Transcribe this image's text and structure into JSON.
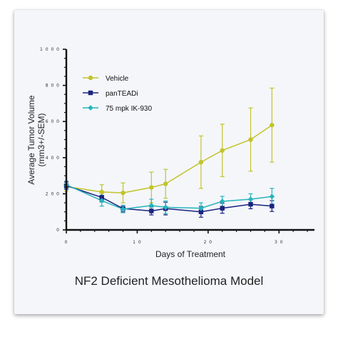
{
  "chart_data": {
    "type": "line",
    "caption": "NF2 Deficient Mesothelioma Model",
    "title": "",
    "xlabel": "Days of Treatment",
    "ylabel_lines": [
      "Average  Tumor Volume",
      "(mm3+/-SEM)"
    ],
    "xlim": [
      0,
      35
    ],
    "ylim": [
      0,
      1000
    ],
    "xticks": [
      0,
      10,
      20,
      30
    ],
    "xtick_labels": [
      "0",
      "1 0",
      "2 0",
      "3 0"
    ],
    "yticks": [
      0,
      200,
      400,
      600,
      800,
      1000
    ],
    "ytick_labels": [
      "0",
      "2 0 0",
      "4 0 0",
      "6 0 0",
      "8 0 0",
      "1 0 0 0"
    ],
    "grid": false,
    "legend_position": "top-left",
    "series": [
      {
        "name": "Vehicle",
        "color": "#c2c42a",
        "marker": "circle",
        "x": [
          0,
          5,
          8,
          12,
          14,
          19,
          22,
          26,
          29
        ],
        "y": [
          240,
          210,
          205,
          235,
          255,
          375,
          440,
          500,
          580
        ],
        "err": [
          25,
          40,
          55,
          85,
          80,
          145,
          145,
          175,
          205
        ]
      },
      {
        "name": "panTEADi",
        "color": "#1a237e",
        "marker": "square",
        "x": [
          0,
          5,
          8,
          12,
          14,
          19,
          22,
          26,
          29
        ],
        "y": [
          245,
          180,
          118,
          105,
          118,
          100,
          120,
          142,
          132
        ],
        "err": [
          20,
          25,
          18,
          22,
          35,
          30,
          28,
          25,
          30
        ]
      },
      {
        "name": "75 mpk IK-930",
        "color": "#26b3bd",
        "marker": "diamond",
        "x": [
          0,
          5,
          8,
          12,
          14,
          19,
          22,
          26,
          29
        ],
        "y": [
          250,
          162,
          115,
          135,
          125,
          120,
          158,
          170,
          185
        ],
        "err": [
          20,
          30,
          20,
          35,
          35,
          30,
          28,
          30,
          45
        ]
      }
    ]
  }
}
